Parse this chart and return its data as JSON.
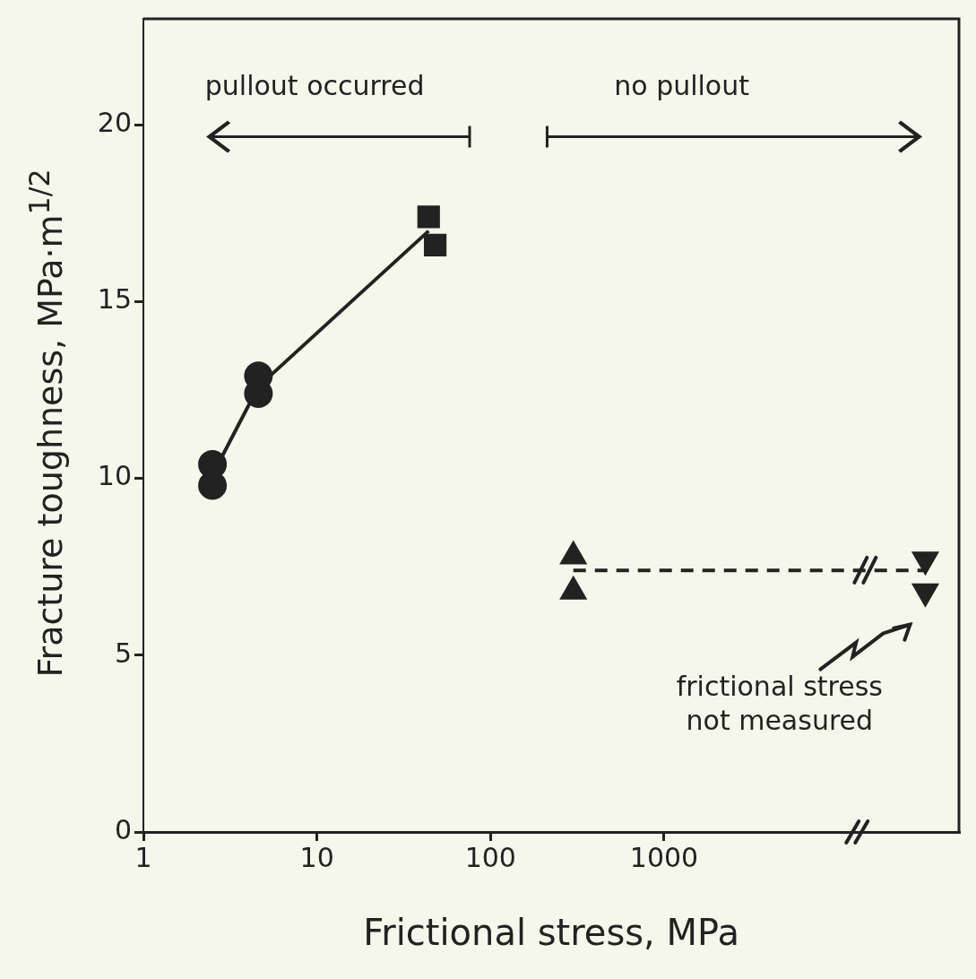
{
  "chart_data": {
    "type": "scatter",
    "xlabel": "Frictional stress, MPa",
    "ylabel": "Fracture toughness, MPa·m$^{1/2}$",
    "log": "x",
    "xlim": [
      1,
      50000
    ],
    "xticks": [
      1,
      10,
      100,
      1000
    ],
    "ylim": [
      0,
      23
    ],
    "yticks": [
      0,
      5,
      10,
      15,
      20
    ],
    "grid": false,
    "legend": false,
    "series": [
      {
        "type": "line",
        "color": "#222222",
        "marker": "none",
        "line_style": "solid",
        "x": [
          2.5,
          4.6,
          44
        ],
        "values": [
          10.1,
          12.6,
          17.0
        ]
      },
      {
        "type": "line",
        "color": "#222222",
        "marker": "none",
        "line_style": "dashed",
        "x": [
          300,
          32000
        ],
        "values": [
          7.4,
          7.4
        ]
      },
      {
        "color": "#222222",
        "marker": "circle",
        "x": [
          2.5,
          2.5,
          4.6,
          4.6
        ],
        "values": [
          10.4,
          9.8,
          12.9,
          12.4
        ]
      },
      {
        "color": "#222222",
        "marker": "square",
        "x": [
          44,
          48
        ],
        "values": [
          17.4,
          16.6
        ]
      },
      {
        "color": "#222222",
        "marker": "triangle",
        "x": [
          300,
          300
        ],
        "values": [
          7.8,
          6.8
        ]
      },
      {
        "color": "#222222",
        "marker": "triangle-down",
        "x": [
          32000,
          32000
        ],
        "values": [
          7.7,
          6.8
        ]
      }
    ],
    "annotations": [
      "pullout occurred",
      "no pullout",
      "frictional stress\nnot measured"
    ]
  }
}
